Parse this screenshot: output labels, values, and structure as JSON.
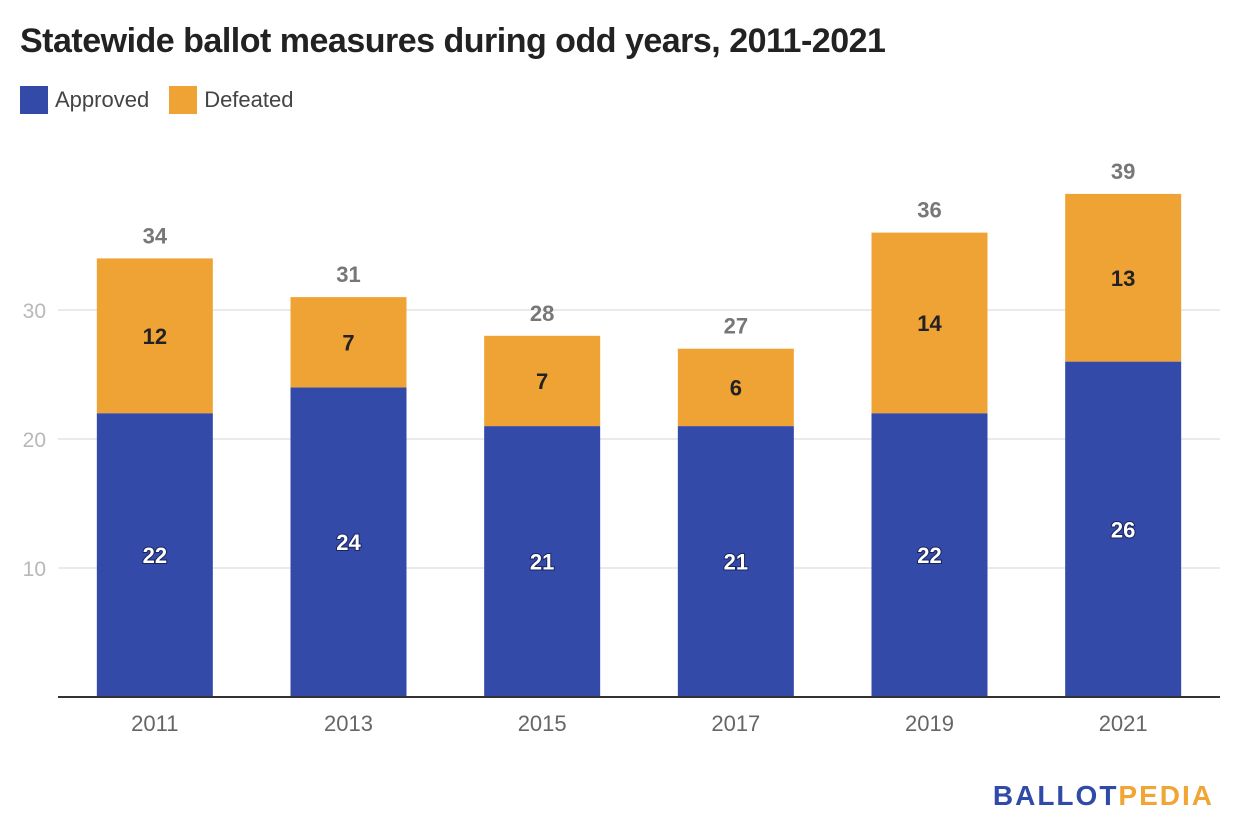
{
  "title": "Statewide ballot measures during odd years, 2011-2021",
  "colors": {
    "approved": "#334aa9",
    "defeated": "#f0a335",
    "grid": "#e3e3e3",
    "axis": "#333333",
    "tick_text": "#b8b8b8",
    "category_text": "#666666",
    "total_text": "#777777"
  },
  "legend": [
    {
      "label": "Approved",
      "color": "#334aa9"
    },
    {
      "label": "Defeated",
      "color": "#f0a335"
    }
  ],
  "logo": {
    "part1": "BALLOT",
    "part2": "PEDIA"
  },
  "chart_data": {
    "type": "bar",
    "stacked": true,
    "categories": [
      "2011",
      "2013",
      "2015",
      "2017",
      "2019",
      "2021"
    ],
    "series": [
      {
        "name": "Approved",
        "values": [
          22,
          24,
          21,
          21,
          22,
          26
        ]
      },
      {
        "name": "Defeated",
        "values": [
          12,
          7,
          7,
          6,
          14,
          13
        ]
      }
    ],
    "totals": [
      34,
      31,
      28,
      27,
      36,
      39
    ],
    "ylim": [
      0,
      40
    ],
    "yticks": [
      10,
      20,
      30
    ],
    "grid": true,
    "legend_position": "top-left",
    "xlabel": "",
    "ylabel": ""
  }
}
